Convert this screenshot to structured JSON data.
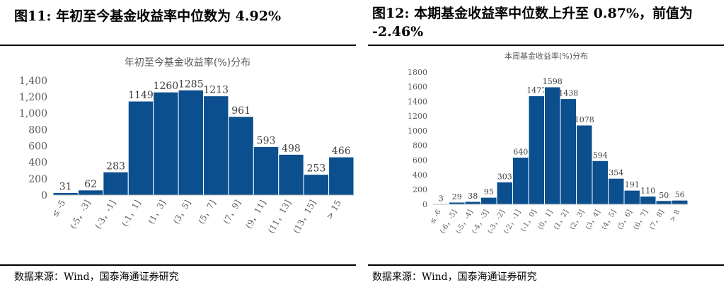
{
  "left": {
    "figure_title": "图11:  年初至今基金收益率中位数为 4.92%",
    "source": "数据来源：Wind，国泰海通证券研究",
    "chart_data": {
      "type": "bar",
      "title": "年初至今基金收益率(%)分布",
      "categories": [
        "≤ -5",
        "(-5，-3]",
        "(-3，-1]",
        "(-1，1]",
        "(1，3]",
        "(3，5]",
        "(5，7]",
        "(7，9]",
        "(9，11]",
        "(11，13]",
        "(13，15]",
        "> 15"
      ],
      "values": [
        31,
        62,
        283,
        1149,
        1260,
        1285,
        1213,
        961,
        593,
        498,
        253,
        466
      ],
      "yticks": [
        "0",
        "200",
        "400",
        "600",
        "800",
        "1,000",
        "1,200",
        "1,400"
      ],
      "ylim": [
        0,
        1400
      ],
      "bar_color": "#0b4f8e",
      "grid": false
    }
  },
  "right": {
    "figure_title": "图12:  本期基金收益率中位数上升至 0.87%，前值为 -2.46%",
    "source": "数据来源：Wind，国泰海通证券研究",
    "chart_data": {
      "type": "bar",
      "title": "本周基金收益率(%)分布",
      "categories": [
        "≤ -6",
        "(-6，-5]",
        "(-5，-4]",
        "(-4，-3]",
        "(-3，-2]",
        "(-2，-1]",
        "(-1，0]",
        "(0，1]",
        "(1，2]",
        "(2，3]",
        "(3，4]",
        "(4，5]",
        "(5，6]",
        "(6，7]",
        "(7，8]",
        "> 8"
      ],
      "values": [
        3,
        29,
        38,
        95,
        303,
        640,
        1477,
        1598,
        1438,
        1078,
        594,
        354,
        191,
        110,
        50,
        56
      ],
      "yticks": [
        "0",
        "200",
        "400",
        "600",
        "800",
        "1000",
        "1200",
        "1400",
        "1600",
        "1800"
      ],
      "ylim": [
        0,
        1800
      ],
      "bar_color": "#0b4f8e",
      "grid": false
    }
  }
}
